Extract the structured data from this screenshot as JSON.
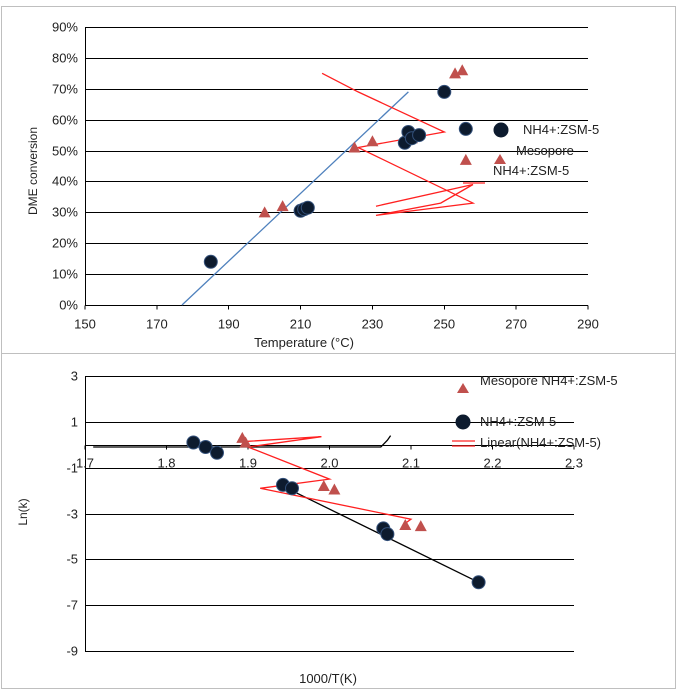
{
  "chart_data": [
    {
      "type": "scatter",
      "title": "",
      "xlabel": "Temperature (°C)",
      "ylabel": "DME conversion",
      "xlim": [
        150,
        290
      ],
      "ylim": [
        0,
        90
      ],
      "x_ticks": [
        "150",
        "170",
        "190",
        "210",
        "230",
        "250",
        "270",
        "290"
      ],
      "y_ticks": [
        "0%",
        "10%",
        "20%",
        "30%",
        "40%",
        "50%",
        "60%",
        "70%",
        "80%",
        "90%"
      ],
      "grid": "horizontal",
      "legend_position": "right",
      "legend": [
        "NH4+:ZSM-5",
        "Mesopore",
        "NH4+:ZSM-5"
      ],
      "series": [
        {
          "name": "NH4+:ZSM-5",
          "marker": "circle",
          "color": "#0d1b2e",
          "points": [
            [
              185,
              14
            ],
            [
              210,
              30.5
            ],
            [
              211,
              31
            ],
            [
              212,
              31.5
            ],
            [
              239,
              52.5
            ],
            [
              240,
              56
            ],
            [
              241,
              54
            ],
            [
              243,
              55
            ],
            [
              250,
              69
            ],
            [
              256,
              57
            ]
          ]
        },
        {
          "name": "Mesopore NH4+:ZSM-5",
          "marker": "triangle",
          "color": "#c0504d",
          "points": [
            [
              200,
              30
            ],
            [
              205,
              32
            ],
            [
              225,
              51
            ],
            [
              230,
              53
            ],
            [
              241,
              54
            ],
            [
              253,
              75
            ],
            [
              255,
              76
            ],
            [
              256,
              47
            ]
          ]
        },
        {
          "name": "",
          "marker": "line",
          "color": "#4f81bd",
          "points": [
            [
              177,
              0
            ],
            [
              240,
              69
            ]
          ]
        },
        {
          "name": "",
          "marker": "line",
          "color": "#ff2020",
          "points": [
            [
              231,
              32
            ],
            [
              258,
              39
            ],
            [
              249,
              33
            ],
            [
              231,
              29
            ],
            [
              258,
              33
            ],
            [
              226,
              51
            ],
            [
              250,
              56
            ],
            [
              226,
              69
            ],
            [
              216,
              75
            ]
          ]
        }
      ]
    },
    {
      "type": "scatter",
      "title": "",
      "xlabel": "1000/T(K)",
      "ylabel": "Ln(k)",
      "xlim": [
        1.7,
        2.3
      ],
      "ylim": [
        -9,
        3
      ],
      "x_ticks": [
        "1.7",
        "1.8",
        "1.9",
        "2.0",
        "2.1",
        "2.2",
        "2.3"
      ],
      "y_ticks": [
        "3",
        "1",
        "-1",
        "-3",
        "-5",
        "-7",
        "-9"
      ],
      "grid": "horizontal",
      "legend_position": "top-right",
      "legend": [
        "Mesopore NH4+:ZSM-5",
        "NH4+:ZSM-5",
        "Linear(NH4+:ZSM-5)"
      ],
      "series": [
        {
          "name": "Mesopore NH4+:ZSM-5",
          "marker": "triangle",
          "color": "#c0504d",
          "points": [
            [
              1.893,
              0.3
            ],
            [
              1.897,
              0.1
            ],
            [
              1.993,
              -1.8
            ],
            [
              2.006,
              -1.95
            ],
            [
              2.093,
              -3.5
            ],
            [
              2.112,
              -3.55
            ]
          ]
        },
        {
          "name": "NH4+:ZSM-5",
          "marker": "circle",
          "color": "#0d1b2e",
          "points": [
            [
              1.833,
              0.1
            ],
            [
              1.848,
              -0.1
            ],
            [
              1.862,
              -0.35
            ],
            [
              1.943,
              -1.75
            ],
            [
              1.954,
              -1.9
            ],
            [
              2.066,
              -3.65
            ],
            [
              2.071,
              -3.9
            ],
            [
              2.183,
              -6.0
            ]
          ]
        },
        {
          "name": "Linear(NH4+:ZSM-5)",
          "marker": "line",
          "color": "#000000",
          "points": [
            [
              1.948,
              -1.9
            ],
            [
              2.183,
              -6.0
            ]
          ]
        },
        {
          "name": "",
          "marker": "line",
          "color": "#000000",
          "points": [
            [
              1.71,
              -0.1
            ],
            [
              2.063,
              -0.1
            ],
            [
              2.071,
              0.2
            ],
            [
              2.075,
              0.4
            ]
          ]
        },
        {
          "name": "",
          "marker": "line",
          "color": "#ff2020",
          "points": [
            [
              1.9,
              0.15
            ],
            [
              1.99,
              0.35
            ],
            [
              1.9,
              -0.1
            ],
            [
              2.0,
              -1.5
            ],
            [
              1.915,
              -1.9
            ],
            [
              2.1,
              -3.25
            ],
            [
              2.09,
              -3.5
            ]
          ]
        }
      ]
    }
  ]
}
